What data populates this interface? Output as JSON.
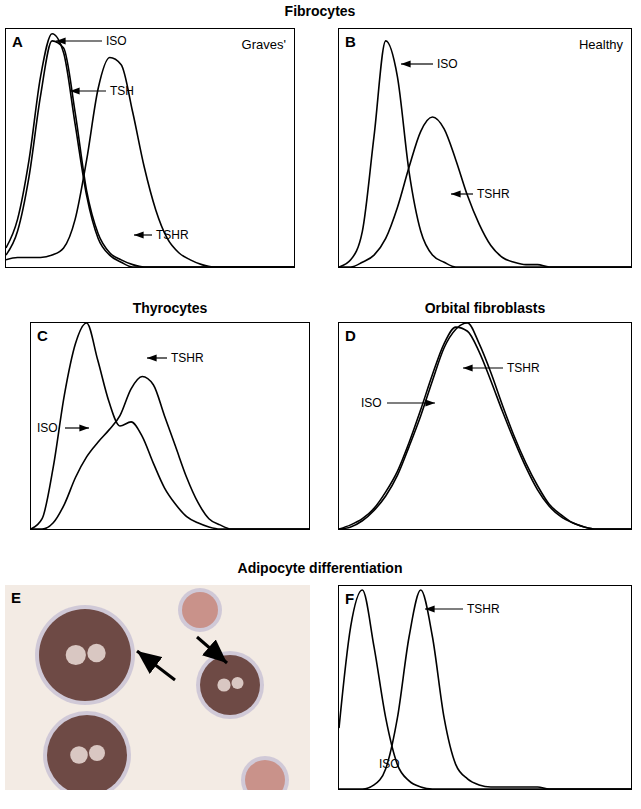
{
  "headings": [
    "Fibrocytes",
    "Thyrocytes",
    "Orbital fibroblasts",
    "Adipocyte differentiation"
  ],
  "image_panels": [
    {
      "label": "E"
    }
  ],
  "chart_data": [
    {
      "type": "line",
      "label": "A",
      "annotation": "Graves'",
      "tick_labels": false,
      "grid": false,
      "xlim": [
        0,
        100
      ],
      "ylim": [
        0,
        100
      ],
      "x": [
        0,
        4,
        8,
        12,
        16,
        20,
        24,
        28,
        32,
        36,
        40,
        44,
        48,
        52,
        56,
        60,
        64,
        68,
        72,
        76,
        80,
        84,
        88,
        92,
        96,
        100
      ],
      "series": [
        {
          "name": "ISO",
          "color": "#000000",
          "values": [
            8,
            20,
            45,
            80,
            98,
            90,
            60,
            30,
            12,
            5,
            2,
            0,
            0,
            0,
            0,
            0,
            0,
            0,
            0,
            0,
            0,
            0,
            0,
            0,
            0,
            0
          ]
        },
        {
          "name": "TSH",
          "color": "#000000",
          "values": [
            5,
            15,
            38,
            72,
            95,
            92,
            65,
            32,
            14,
            6,
            3,
            1,
            0,
            0,
            0,
            0,
            0,
            0,
            0,
            0,
            0,
            0,
            0,
            0,
            0,
            0
          ]
        },
        {
          "name": "TSHR",
          "color": "#000000",
          "values": [
            3,
            4,
            4,
            4,
            5,
            8,
            20,
            45,
            75,
            88,
            85,
            65,
            42,
            24,
            12,
            6,
            3,
            1,
            0,
            0,
            0,
            0,
            0,
            0,
            0,
            0
          ]
        }
      ]
    },
    {
      "type": "line",
      "label": "B",
      "annotation": "Healthy",
      "tick_labels": false,
      "grid": false,
      "xlim": [
        0,
        100
      ],
      "ylim": [
        0,
        100
      ],
      "x": [
        0,
        4,
        8,
        12,
        16,
        20,
        24,
        28,
        32,
        36,
        40,
        44,
        48,
        52,
        56,
        60,
        64,
        68,
        72,
        76,
        80,
        84,
        88,
        92,
        96,
        100
      ],
      "series": [
        {
          "name": "ISO",
          "color": "#000000",
          "values": [
            0,
            3,
            15,
            55,
            95,
            80,
            40,
            15,
            5,
            2,
            0,
            0,
            0,
            0,
            0,
            0,
            0,
            0,
            0,
            0,
            0,
            0,
            0,
            0,
            0,
            0
          ]
        },
        {
          "name": "TSHR",
          "color": "#000000",
          "values": [
            0,
            0,
            2,
            5,
            12,
            25,
            42,
            57,
            63,
            58,
            45,
            30,
            18,
            9,
            4,
            2,
            1,
            1,
            0,
            0,
            0,
            0,
            0,
            0,
            0,
            0
          ]
        }
      ]
    },
    {
      "type": "line",
      "label": "C",
      "title": "Thyrocytes",
      "tick_labels": false,
      "grid": false,
      "xlim": [
        0,
        100
      ],
      "ylim": [
        0,
        100
      ],
      "x": [
        0,
        4,
        8,
        12,
        16,
        20,
        24,
        28,
        32,
        36,
        40,
        44,
        48,
        52,
        56,
        60,
        64,
        68,
        72,
        76,
        80,
        84,
        88,
        92,
        96,
        100
      ],
      "series": [
        {
          "name": "ISO",
          "color": "#000000",
          "values": [
            0,
            5,
            30,
            65,
            90,
            100,
            82,
            62,
            50,
            52,
            45,
            32,
            20,
            12,
            6,
            3,
            1,
            0,
            0,
            0,
            0,
            0,
            0,
            0,
            0,
            0
          ]
        },
        {
          "name": "TSHR",
          "color": "#000000",
          "values": [
            0,
            0,
            3,
            12,
            25,
            35,
            42,
            48,
            55,
            68,
            74,
            70,
            55,
            40,
            25,
            13,
            5,
            2,
            0,
            0,
            0,
            0,
            0,
            0,
            0,
            0
          ]
        }
      ]
    },
    {
      "type": "line",
      "label": "D",
      "title": "Orbital fibroblasts",
      "tick_labels": false,
      "grid": false,
      "xlim": [
        0,
        100
      ],
      "ylim": [
        0,
        100
      ],
      "x": [
        0,
        4,
        8,
        12,
        16,
        20,
        24,
        28,
        32,
        36,
        40,
        44,
        48,
        52,
        56,
        60,
        64,
        68,
        72,
        76,
        80,
        84,
        88,
        92,
        96,
        100
      ],
      "series": [
        {
          "name": "ISO",
          "color": "#000000",
          "values": [
            0,
            2,
            5,
            10,
            18,
            28,
            42,
            58,
            75,
            90,
            98,
            96,
            86,
            72,
            57,
            43,
            30,
            19,
            11,
            6,
            3,
            1,
            0,
            0,
            0,
            0
          ]
        },
        {
          "name": "TSHR",
          "color": "#000000",
          "values": [
            0,
            1,
            4,
            9,
            16,
            26,
            40,
            55,
            72,
            88,
            97,
            100,
            90,
            76,
            60,
            45,
            32,
            21,
            12,
            7,
            3,
            1,
            0,
            0,
            0,
            0
          ]
        }
      ]
    },
    {
      "type": "line",
      "label": "F",
      "tick_labels": false,
      "grid": false,
      "xlim": [
        0,
        100
      ],
      "ylim": [
        0,
        100
      ],
      "x": [
        0,
        4,
        8,
        12,
        16,
        20,
        24,
        28,
        32,
        36,
        40,
        44,
        48,
        52,
        56,
        60,
        64,
        68,
        72,
        76,
        80,
        84,
        88,
        92,
        96,
        100
      ],
      "series": [
        {
          "name": "ISO",
          "color": "#000000",
          "values": [
            30,
            80,
            98,
            70,
            35,
            12,
            4,
            1,
            0,
            0,
            0,
            0,
            0,
            0,
            0,
            0,
            0,
            0,
            0,
            0,
            0,
            0,
            0,
            0,
            0,
            0
          ]
        },
        {
          "name": "TSHR",
          "color": "#000000",
          "values": [
            0,
            0,
            0,
            2,
            10,
            35,
            75,
            98,
            75,
            35,
            12,
            5,
            2,
            1,
            1,
            1,
            1,
            1,
            0,
            0,
            0,
            0,
            0,
            0,
            0,
            0
          ]
        }
      ]
    }
  ]
}
